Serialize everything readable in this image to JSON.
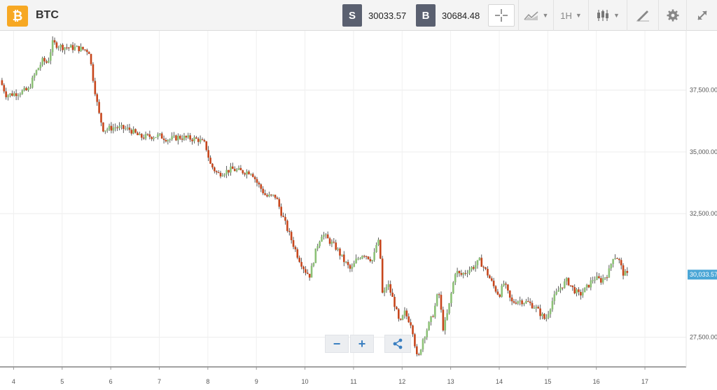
{
  "header": {
    "logo_glyph": "₿",
    "symbol": "BTC",
    "sell": {
      "label": "S",
      "value": "30033.57"
    },
    "buy": {
      "label": "B",
      "value": "30684.48"
    },
    "interval": "1H",
    "icons": {
      "crosshair": "crosshair-icon",
      "line_style": "line-chart-icon",
      "chart_type": "candlestick-icon",
      "draw": "draw-pencil-icon",
      "settings": "gear-icon",
      "fullscreen": "expand-icon"
    }
  },
  "zoom": {
    "out_label": "−",
    "in_label": "+",
    "share_icon": "share-icon"
  },
  "chart_data": {
    "type": "candlestick",
    "symbol": "BTC",
    "interval": "1H",
    "up_color": "#8cc176",
    "down_color": "#c7461c",
    "last_price": 30033.57,
    "last_price_label": "30,033.57",
    "y_ticks": [
      "37,500.00",
      "35,000.00",
      "32,500.00",
      "27,500.00"
    ],
    "y_tick_values": [
      37500,
      35000,
      32500,
      27500
    ],
    "ylim": [
      26300,
      39900
    ],
    "x_ticks": [
      "4",
      "5",
      "6",
      "7",
      "8",
      "9",
      "10",
      "11",
      "12",
      "13",
      "14",
      "15",
      "16",
      "17"
    ],
    "x_tick_values": [
      4,
      5,
      6,
      7,
      8,
      9,
      10,
      11,
      12,
      13,
      14,
      15,
      16,
      17
    ],
    "xlim": [
      3.72,
      17.85
    ],
    "close_path": [
      [
        3.72,
        37900
      ],
      [
        3.85,
        37300
      ],
      [
        4.0,
        37350
      ],
      [
        4.3,
        37500
      ],
      [
        4.45,
        38200
      ],
      [
        4.6,
        38700
      ],
      [
        4.7,
        38600
      ],
      [
        4.8,
        39400
      ],
      [
        5.0,
        39250
      ],
      [
        5.3,
        39200
      ],
      [
        5.55,
        39100
      ],
      [
        5.65,
        37800
      ],
      [
        5.75,
        36600
      ],
      [
        5.85,
        35900
      ],
      [
        6.1,
        36000
      ],
      [
        6.4,
        35900
      ],
      [
        6.6,
        35600
      ],
      [
        7.0,
        35650
      ],
      [
        7.2,
        35500
      ],
      [
        7.4,
        35600
      ],
      [
        7.8,
        35500
      ],
      [
        7.95,
        35300
      ],
      [
        8.05,
        34500
      ],
      [
        8.2,
        34100
      ],
      [
        8.5,
        34300
      ],
      [
        8.7,
        34200
      ],
      [
        8.9,
        34200
      ],
      [
        9.0,
        33800
      ],
      [
        9.2,
        33200
      ],
      [
        9.4,
        33200
      ],
      [
        9.5,
        32600
      ],
      [
        9.65,
        31800
      ],
      [
        9.85,
        30800
      ],
      [
        10.0,
        30200
      ],
      [
        10.1,
        30000
      ],
      [
        10.25,
        31200
      ],
      [
        10.35,
        31700
      ],
      [
        10.5,
        31400
      ],
      [
        10.65,
        31100
      ],
      [
        10.8,
        30600
      ],
      [
        10.95,
        30200
      ],
      [
        11.05,
        30600
      ],
      [
        11.2,
        30900
      ],
      [
        11.4,
        30600
      ],
      [
        11.5,
        31500
      ],
      [
        11.55,
        30800
      ],
      [
        11.6,
        29100
      ],
      [
        11.7,
        29700
      ],
      [
        11.85,
        28800
      ],
      [
        11.95,
        28000
      ],
      [
        12.05,
        28500
      ],
      [
        12.2,
        28000
      ],
      [
        12.32,
        26500
      ],
      [
        12.42,
        27400
      ],
      [
        12.55,
        28000
      ],
      [
        12.65,
        28500
      ],
      [
        12.75,
        29400
      ],
      [
        12.85,
        27800
      ],
      [
        12.95,
        28600
      ],
      [
        13.1,
        30200
      ],
      [
        13.2,
        30000
      ],
      [
        13.35,
        30200
      ],
      [
        13.5,
        30400
      ],
      [
        13.6,
        30600
      ],
      [
        13.75,
        30100
      ],
      [
        13.9,
        29500
      ],
      [
        14.0,
        29200
      ],
      [
        14.1,
        29700
      ],
      [
        14.25,
        28900
      ],
      [
        14.4,
        29000
      ],
      [
        14.6,
        28900
      ],
      [
        14.75,
        28700
      ],
      [
        14.95,
        28200
      ],
      [
        15.1,
        29000
      ],
      [
        15.25,
        29500
      ],
      [
        15.4,
        29800
      ],
      [
        15.5,
        29500
      ],
      [
        15.65,
        29200
      ],
      [
        15.8,
        29500
      ],
      [
        15.95,
        29900
      ],
      [
        16.1,
        29800
      ],
      [
        16.25,
        30100
      ],
      [
        16.35,
        30800
      ],
      [
        16.45,
        30700
      ],
      [
        16.55,
        30100
      ],
      [
        16.65,
        30000
      ]
    ]
  }
}
